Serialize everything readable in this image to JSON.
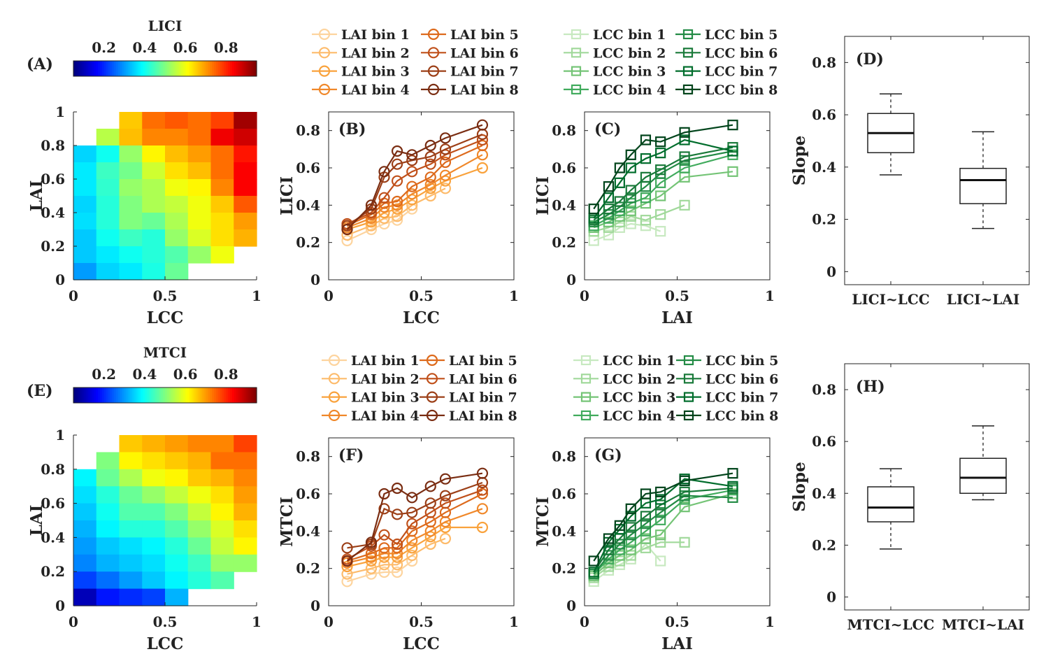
{
  "chart_data": [
    {
      "panel": "A",
      "type": "heatmap",
      "panel_label": "(A)",
      "xlabel": "LCC",
      "ylabel": "LAI",
      "colorbar": {
        "title": "LICI",
        "ticks": [
          "0.2",
          "0.4",
          "0.6",
          "0.8"
        ],
        "range": [
          0.05,
          0.95
        ]
      },
      "xlim": [
        0,
        1
      ],
      "ylim": [
        0,
        1
      ],
      "x_ticks": [
        "0",
        "0.5",
        "1"
      ],
      "y_ticks": [
        "0",
        "0.2",
        "0.4",
        "0.6",
        "0.8",
        "1"
      ],
      "grid_cols": 8,
      "grid_rows": 10,
      "values": [
        [
          null,
          null,
          0.66,
          0.74,
          0.76,
          0.74,
          0.78,
          0.92
        ],
        [
          null,
          0.55,
          0.67,
          0.72,
          0.72,
          0.74,
          0.85,
          0.88
        ],
        [
          0.35,
          0.4,
          0.52,
          0.62,
          0.67,
          0.7,
          0.74,
          0.82
        ],
        [
          0.37,
          0.44,
          0.49,
          0.57,
          0.64,
          0.67,
          0.74,
          0.84
        ],
        [
          0.37,
          0.43,
          0.52,
          0.54,
          0.6,
          0.62,
          0.72,
          0.84
        ],
        [
          0.35,
          0.42,
          0.5,
          0.54,
          0.56,
          0.6,
          0.66,
          0.76
        ],
        [
          0.36,
          0.42,
          0.5,
          0.48,
          0.54,
          0.6,
          0.64,
          0.7
        ],
        [
          0.34,
          0.4,
          0.44,
          0.42,
          0.52,
          0.58,
          0.64,
          0.68
        ],
        [
          0.34,
          0.37,
          0.4,
          0.42,
          0.46,
          0.52,
          0.6,
          null
        ],
        [
          0.3,
          0.35,
          0.37,
          0.41,
          0.48,
          null,
          null,
          null
        ]
      ]
    },
    {
      "panel": "B",
      "type": "line",
      "panel_label": "(B)",
      "xlabel": "LCC",
      "ylabel": "LICI",
      "xlim": [
        0,
        1
      ],
      "ylim": [
        0,
        0.9
      ],
      "x_ticks": [
        "0",
        "0.5",
        "1"
      ],
      "y_ticks": [
        "0",
        "0.2",
        "0.4",
        "0.6",
        "0.8"
      ],
      "marker": "circle",
      "x": [
        0.1,
        0.23,
        0.3,
        0.37,
        0.45,
        0.55,
        0.63,
        0.83
      ],
      "series": [
        {
          "name": "LAI bin 1",
          "color": "#fdd49e",
          "values": [
            0.21,
            0.27,
            0.3,
            0.32,
            0.38,
            null,
            null,
            null
          ]
        },
        {
          "name": "LAI bin 2",
          "color": "#fdbb6b",
          "values": [
            0.24,
            0.29,
            0.33,
            0.34,
            0.4,
            0.45,
            0.49,
            null
          ]
        },
        {
          "name": "LAI bin 3",
          "color": "#f9a23c",
          "values": [
            0.27,
            0.31,
            0.36,
            0.38,
            0.43,
            0.49,
            0.53,
            0.6
          ]
        },
        {
          "name": "LAI bin 4",
          "color": "#f0882a",
          "values": [
            0.28,
            0.33,
            0.39,
            0.4,
            0.46,
            0.51,
            0.56,
            0.67
          ]
        },
        {
          "name": "LAI bin 5",
          "color": "#dd6a1c",
          "values": [
            0.29,
            0.35,
            0.41,
            0.42,
            0.5,
            0.55,
            0.63,
            0.72
          ]
        },
        {
          "name": "LAI bin 6",
          "color": "#c0501a",
          "values": [
            0.3,
            0.36,
            0.44,
            0.53,
            0.58,
            0.62,
            0.67,
            0.75
          ]
        },
        {
          "name": "LAI bin 7",
          "color": "#9c3f17",
          "values": [
            0.29,
            0.38,
            0.55,
            0.62,
            0.64,
            0.66,
            0.7,
            0.78
          ]
        },
        {
          "name": "LAI bin 8",
          "color": "#7a2d12",
          "values": [
            0.27,
            0.4,
            0.58,
            0.69,
            0.67,
            0.72,
            0.76,
            0.83
          ]
        }
      ]
    },
    {
      "panel": "C",
      "type": "line",
      "panel_label": "(C)",
      "xlabel": "LAI",
      "ylabel": "LICI",
      "xlim": [
        0,
        1
      ],
      "ylim": [
        0,
        0.9
      ],
      "x_ticks": [
        "0",
        "0.5",
        "1"
      ],
      "y_ticks": [
        "0",
        "0.2",
        "0.4",
        "0.6",
        "0.8"
      ],
      "marker": "square",
      "x": [
        0.05,
        0.13,
        0.19,
        0.25,
        0.33,
        0.41,
        0.54,
        0.8
      ],
      "series": [
        {
          "name": "LCC bin 1",
          "color": "#c7e9c0",
          "values": [
            0.21,
            0.24,
            0.28,
            0.3,
            0.29,
            0.26,
            null,
            null
          ]
        },
        {
          "name": "LCC bin 2",
          "color": "#a1d99b",
          "values": [
            0.26,
            0.28,
            0.31,
            0.34,
            0.32,
            0.35,
            0.4,
            null
          ]
        },
        {
          "name": "LCC bin 3",
          "color": "#74c476",
          "values": [
            0.28,
            0.31,
            0.34,
            0.37,
            0.41,
            0.45,
            0.55,
            0.58
          ]
        },
        {
          "name": "LCC bin 4",
          "color": "#41ab5d",
          "values": [
            0.29,
            0.33,
            0.37,
            0.41,
            0.44,
            0.52,
            0.6,
            0.67
          ]
        },
        {
          "name": "LCC bin 5",
          "color": "#238b45",
          "values": [
            0.31,
            0.35,
            0.39,
            0.44,
            0.5,
            0.57,
            0.64,
            0.69
          ]
        },
        {
          "name": "LCC bin 6",
          "color": "#1a7a3a",
          "values": [
            0.32,
            0.38,
            0.42,
            0.48,
            0.55,
            0.59,
            0.66,
            0.71
          ]
        },
        {
          "name": "LCC bin 7",
          "color": "#006d2c",
          "values": [
            0.33,
            0.44,
            0.52,
            0.6,
            0.65,
            0.68,
            0.75,
            0.69
          ]
        },
        {
          "name": "LCC bin 8",
          "color": "#00441b",
          "values": [
            0.38,
            0.5,
            0.6,
            0.67,
            0.75,
            0.74,
            0.79,
            0.83
          ]
        }
      ]
    },
    {
      "panel": "D",
      "type": "box",
      "panel_label": "(D)",
      "ylabel": "Slope",
      "ylim": [
        -0.05,
        0.9
      ],
      "y_ticks": [
        "0",
        "0.2",
        "0.4",
        "0.6",
        "0.8"
      ],
      "categories": [
        "LICI~LCC",
        "LICI~LAI"
      ],
      "boxes": [
        {
          "min": 0.37,
          "q1": 0.455,
          "median": 0.53,
          "q3": 0.605,
          "max": 0.68
        },
        {
          "min": 0.165,
          "q1": 0.26,
          "median": 0.35,
          "q3": 0.395,
          "max": 0.535
        }
      ]
    },
    {
      "panel": "E",
      "type": "heatmap",
      "panel_label": "(E)",
      "xlabel": "LCC",
      "ylabel": "LAI",
      "colorbar": {
        "title": "MTCI",
        "ticks": [
          "0.2",
          "0.4",
          "0.6",
          "0.8"
        ],
        "range": [
          0.05,
          0.95
        ]
      },
      "xlim": [
        0,
        1
      ],
      "ylim": [
        0,
        1
      ],
      "x_ticks": [
        "0",
        "0.5",
        "1"
      ],
      "y_ticks": [
        "0",
        "0.2",
        "0.4",
        "0.6",
        "0.8",
        "1"
      ],
      "grid_cols": 8,
      "grid_rows": 10,
      "values": [
        [
          null,
          null,
          0.66,
          0.68,
          0.7,
          0.72,
          0.72,
          0.78
        ],
        [
          null,
          0.5,
          0.62,
          0.64,
          0.66,
          0.68,
          0.74,
          0.74
        ],
        [
          0.38,
          0.48,
          0.54,
          0.6,
          0.62,
          0.66,
          0.68,
          0.72
        ],
        [
          0.36,
          0.42,
          0.48,
          0.52,
          0.56,
          0.6,
          0.64,
          0.7
        ],
        [
          0.34,
          0.4,
          0.46,
          0.46,
          0.5,
          0.56,
          0.62,
          0.68
        ],
        [
          0.32,
          0.38,
          0.42,
          0.42,
          0.46,
          0.52,
          0.58,
          0.64
        ],
        [
          0.3,
          0.34,
          0.36,
          0.38,
          0.42,
          0.48,
          0.56,
          0.62
        ],
        [
          0.28,
          0.32,
          0.34,
          0.36,
          0.4,
          0.44,
          0.52,
          0.52
        ],
        [
          0.22,
          0.26,
          0.3,
          0.34,
          0.38,
          0.42,
          0.46,
          null
        ],
        [
          0.1,
          0.18,
          0.2,
          0.22,
          0.32,
          null,
          null,
          null
        ]
      ]
    },
    {
      "panel": "F",
      "type": "line",
      "panel_label": "(F)",
      "xlabel": "LCC",
      "ylabel": "MTCI",
      "xlim": [
        0,
        1
      ],
      "ylim": [
        0,
        0.9
      ],
      "x_ticks": [
        "0",
        "0.5",
        "1"
      ],
      "y_ticks": [
        "0",
        "0.2",
        "0.4",
        "0.6",
        "0.8"
      ],
      "marker": "circle",
      "x": [
        0.1,
        0.23,
        0.3,
        0.37,
        0.45,
        0.55,
        0.63,
        0.83
      ],
      "series": [
        {
          "name": "LAI bin 1",
          "color": "#fdd49e",
          "values": [
            0.13,
            0.17,
            0.18,
            0.18,
            0.24,
            null,
            null,
            null
          ]
        },
        {
          "name": "LAI bin 2",
          "color": "#fdbb6b",
          "values": [
            0.17,
            0.2,
            0.22,
            0.22,
            0.27,
            0.33,
            0.36,
            null
          ]
        },
        {
          "name": "LAI bin 3",
          "color": "#f9a23c",
          "values": [
            0.21,
            0.24,
            0.26,
            0.26,
            0.31,
            0.37,
            0.42,
            0.42
          ]
        },
        {
          "name": "LAI bin 4",
          "color": "#f0882a",
          "values": [
            0.23,
            0.26,
            0.28,
            0.28,
            0.35,
            0.4,
            0.45,
            0.52
          ]
        },
        {
          "name": "LAI bin 5",
          "color": "#dd6a1c",
          "values": [
            0.24,
            0.28,
            0.31,
            0.31,
            0.4,
            0.45,
            0.5,
            0.6
          ]
        },
        {
          "name": "LAI bin 6",
          "color": "#c0501a",
          "values": [
            0.25,
            0.32,
            0.38,
            0.33,
            0.44,
            0.5,
            0.55,
            0.62
          ]
        },
        {
          "name": "LAI bin 7",
          "color": "#9c3f17",
          "values": [
            0.31,
            0.33,
            0.52,
            0.49,
            0.5,
            0.55,
            0.59,
            0.66
          ]
        },
        {
          "name": "LAI bin 8",
          "color": "#7a2d12",
          "values": [
            0.24,
            0.34,
            0.6,
            0.63,
            0.58,
            0.64,
            0.68,
            0.71
          ]
        }
      ]
    },
    {
      "panel": "G",
      "type": "line",
      "panel_label": "(G)",
      "xlabel": "LAI",
      "ylabel": "MTCI",
      "xlim": [
        0,
        1
      ],
      "ylim": [
        0,
        0.9
      ],
      "x_ticks": [
        "0",
        "0.5",
        "1"
      ],
      "y_ticks": [
        "0",
        "0.2",
        "0.4",
        "0.6",
        "0.8"
      ],
      "marker": "square",
      "x": [
        0.05,
        0.13,
        0.19,
        0.25,
        0.33,
        0.41,
        0.54,
        0.8
      ],
      "series": [
        {
          "name": "LCC bin 1",
          "color": "#c7e9c0",
          "values": [
            0.13,
            0.19,
            0.22,
            0.25,
            0.33,
            0.24,
            null,
            null
          ]
        },
        {
          "name": "LCC bin 2",
          "color": "#a1d99b",
          "values": [
            0.15,
            0.21,
            0.24,
            0.27,
            0.31,
            0.34,
            0.34,
            null
          ]
        },
        {
          "name": "LCC bin 3",
          "color": "#74c476",
          "values": [
            0.16,
            0.23,
            0.27,
            0.3,
            0.36,
            0.38,
            0.53,
            0.6
          ]
        },
        {
          "name": "LCC bin 4",
          "color": "#41ab5d",
          "values": [
            0.17,
            0.25,
            0.3,
            0.34,
            0.4,
            0.46,
            0.57,
            0.62
          ]
        },
        {
          "name": "LCC bin 5",
          "color": "#238b45",
          "values": [
            0.17,
            0.27,
            0.33,
            0.38,
            0.44,
            0.5,
            0.59,
            0.58
          ]
        },
        {
          "name": "LCC bin 6",
          "color": "#1a7a3a",
          "values": [
            0.18,
            0.3,
            0.36,
            0.42,
            0.48,
            0.54,
            0.61,
            0.63
          ]
        },
        {
          "name": "LCC bin 7",
          "color": "#006d2c",
          "values": [
            0.18,
            0.34,
            0.41,
            0.48,
            0.55,
            0.57,
            0.68,
            0.64
          ]
        },
        {
          "name": "LCC bin 8",
          "color": "#00441b",
          "values": [
            0.24,
            0.36,
            0.43,
            0.52,
            0.6,
            0.61,
            0.67,
            0.71
          ]
        }
      ]
    },
    {
      "panel": "H",
      "type": "box",
      "panel_label": "(H)",
      "ylabel": "Slope",
      "ylim": [
        -0.05,
        0.9
      ],
      "y_ticks": [
        "0",
        "0.2",
        "0.4",
        "0.6",
        "0.8"
      ],
      "categories": [
        "MTCI~LCC",
        "MTCI~LAI"
      ],
      "boxes": [
        {
          "min": 0.185,
          "q1": 0.29,
          "median": 0.345,
          "q3": 0.425,
          "max": 0.495
        },
        {
          "min": 0.375,
          "q1": 0.4,
          "median": 0.46,
          "q3": 0.535,
          "max": 0.66
        }
      ]
    }
  ]
}
